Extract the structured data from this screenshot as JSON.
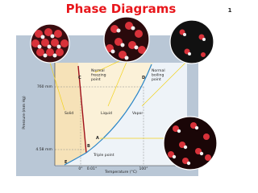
{
  "header": {
    "title": "Phase Diagrams",
    "page_number": "1"
  },
  "diagram": {
    "y_axis_label": "Pressure (mm Hg)",
    "x_axis_label": "Temperature (°C)",
    "pressure_labels": [
      "760 mm",
      "4.58 mm"
    ],
    "temperature_labels": [
      "0°",
      "0.01°",
      "100°"
    ],
    "regions": [
      "Solid",
      "Liquid",
      "Vapor"
    ],
    "triple_point": "Triple point",
    "freezing_point": [
      "Normal",
      "freezing",
      "point"
    ],
    "boiling_point": [
      "Normal",
      "boiling",
      "point"
    ],
    "points": [
      "A",
      "B",
      "C",
      "D",
      "E"
    ]
  }
}
